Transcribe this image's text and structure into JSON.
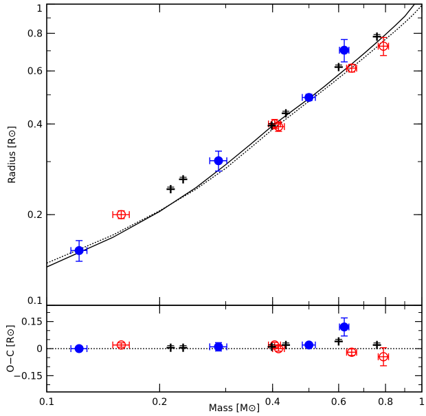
{
  "chart_data": {
    "type": "scatter",
    "xlabel": "Mass [M⊙]",
    "xscale": "log",
    "xlim": [
      0.1,
      1.0
    ],
    "xticks": [
      {
        "v": 0.1,
        "label": "0.1"
      },
      {
        "v": 0.2,
        "label": "0.2"
      },
      {
        "v": 0.4,
        "label": "0.4"
      },
      {
        "v": 0.6,
        "label": "0.6"
      },
      {
        "v": 0.8,
        "label": "0.8"
      },
      {
        "v": 1.0,
        "label": "1"
      }
    ],
    "panels": [
      {
        "id": "main",
        "ylabel": "Radius [R⊙]",
        "yscale": "log",
        "ylim": [
          0.1,
          1.0
        ],
        "yticks": [
          {
            "v": 0.1,
            "label": "0.1"
          },
          {
            "v": 0.2,
            "label": "0.2"
          },
          {
            "v": 0.4,
            "label": "0.4"
          },
          {
            "v": 0.6,
            "label": "0.6"
          },
          {
            "v": 0.8,
            "label": "0.8"
          },
          {
            "v": 1.0,
            "label": "1"
          }
        ]
      },
      {
        "id": "residual",
        "ylabel": "O−C [R⊙]",
        "yscale": "linear",
        "ylim": [
          -0.24,
          0.24
        ],
        "yticks": [
          {
            "v": 0.15,
            "label": "0.15"
          },
          {
            "v": 0.0,
            "label": "0"
          },
          {
            "v": -0.15,
            "label": "−0.15"
          }
        ],
        "zero_line": true
      }
    ],
    "models": [
      {
        "style": "solid",
        "x": [
          0.1,
          0.15,
          0.2,
          0.25,
          0.3,
          0.35,
          0.4,
          0.45,
          0.5,
          0.55,
          0.6,
          0.65,
          0.7,
          0.75,
          0.8,
          0.85,
          0.9,
          0.95,
          1.0
        ],
        "y": [
          0.134,
          0.168,
          0.205,
          0.246,
          0.293,
          0.343,
          0.395,
          0.441,
          0.486,
          0.533,
          0.583,
          0.633,
          0.684,
          0.738,
          0.793,
          0.85,
          0.91,
          0.99,
          1.07
        ]
      },
      {
        "style": "dotted",
        "x": [
          0.1,
          0.15,
          0.2,
          0.25,
          0.3,
          0.35,
          0.4,
          0.45,
          0.5,
          0.55,
          0.6,
          0.65,
          0.7,
          0.75,
          0.8,
          0.85,
          0.9,
          0.95,
          1.0
        ],
        "y": [
          0.138,
          0.171,
          0.206,
          0.243,
          0.285,
          0.334,
          0.384,
          0.43,
          0.476,
          0.521,
          0.568,
          0.615,
          0.663,
          0.712,
          0.765,
          0.815,
          0.868,
          0.925,
          0.99
        ]
      }
    ],
    "series": [
      {
        "marker": "filled-circle",
        "color": "#0000ff",
        "points": [
          {
            "x": 0.122,
            "y": 0.152,
            "xerr": 0.006,
            "yerr": 0.012,
            "res": 0.0,
            "res_err": 0.012
          },
          {
            "x": 0.287,
            "y": 0.302,
            "xerr": 0.015,
            "yerr": 0.023,
            "res": 0.01,
            "res_err": 0.023
          },
          {
            "x": 0.5,
            "y": 0.49,
            "xerr": 0.02,
            "yerr": 0.012,
            "res": 0.02,
            "res_err": 0.012
          },
          {
            "x": 0.621,
            "y": 0.703,
            "xerr": 0.018,
            "yerr": 0.06,
            "res": 0.12,
            "res_err": 0.05
          }
        ]
      },
      {
        "marker": "open-circle",
        "color": "#ff0000",
        "points": [
          {
            "x": 0.158,
            "y": 0.2,
            "xerr": 0.008,
            "yerr": 0.006,
            "res": 0.02,
            "res_err": 0.012
          },
          {
            "x": 0.405,
            "y": 0.4,
            "xerr": 0.015,
            "yerr": 0.014,
            "res": 0.02,
            "res_err": 0.014
          },
          {
            "x": 0.415,
            "y": 0.392,
            "xerr": 0.015,
            "yerr": 0.014,
            "res": 0.0,
            "res_err": 0.014
          },
          {
            "x": 0.65,
            "y": 0.613,
            "xerr": 0.02,
            "yerr": 0.018,
            "res": -0.02,
            "res_err": 0.018
          },
          {
            "x": 0.79,
            "y": 0.725,
            "xerr": 0.025,
            "yerr": 0.05,
            "res": -0.045,
            "res_err": 0.05
          }
        ]
      },
      {
        "marker": "cross",
        "color": "#000000",
        "points": [
          {
            "x": 0.214,
            "y": 0.243,
            "res": 0.005
          },
          {
            "x": 0.231,
            "y": 0.262,
            "res": 0.005
          },
          {
            "x": 0.398,
            "y": 0.395,
            "res": 0.01
          },
          {
            "x": 0.434,
            "y": 0.434,
            "res": 0.02
          },
          {
            "x": 0.6,
            "y": 0.618,
            "res": 0.04
          },
          {
            "x": 0.759,
            "y": 0.78,
            "res": 0.02
          }
        ]
      }
    ]
  }
}
